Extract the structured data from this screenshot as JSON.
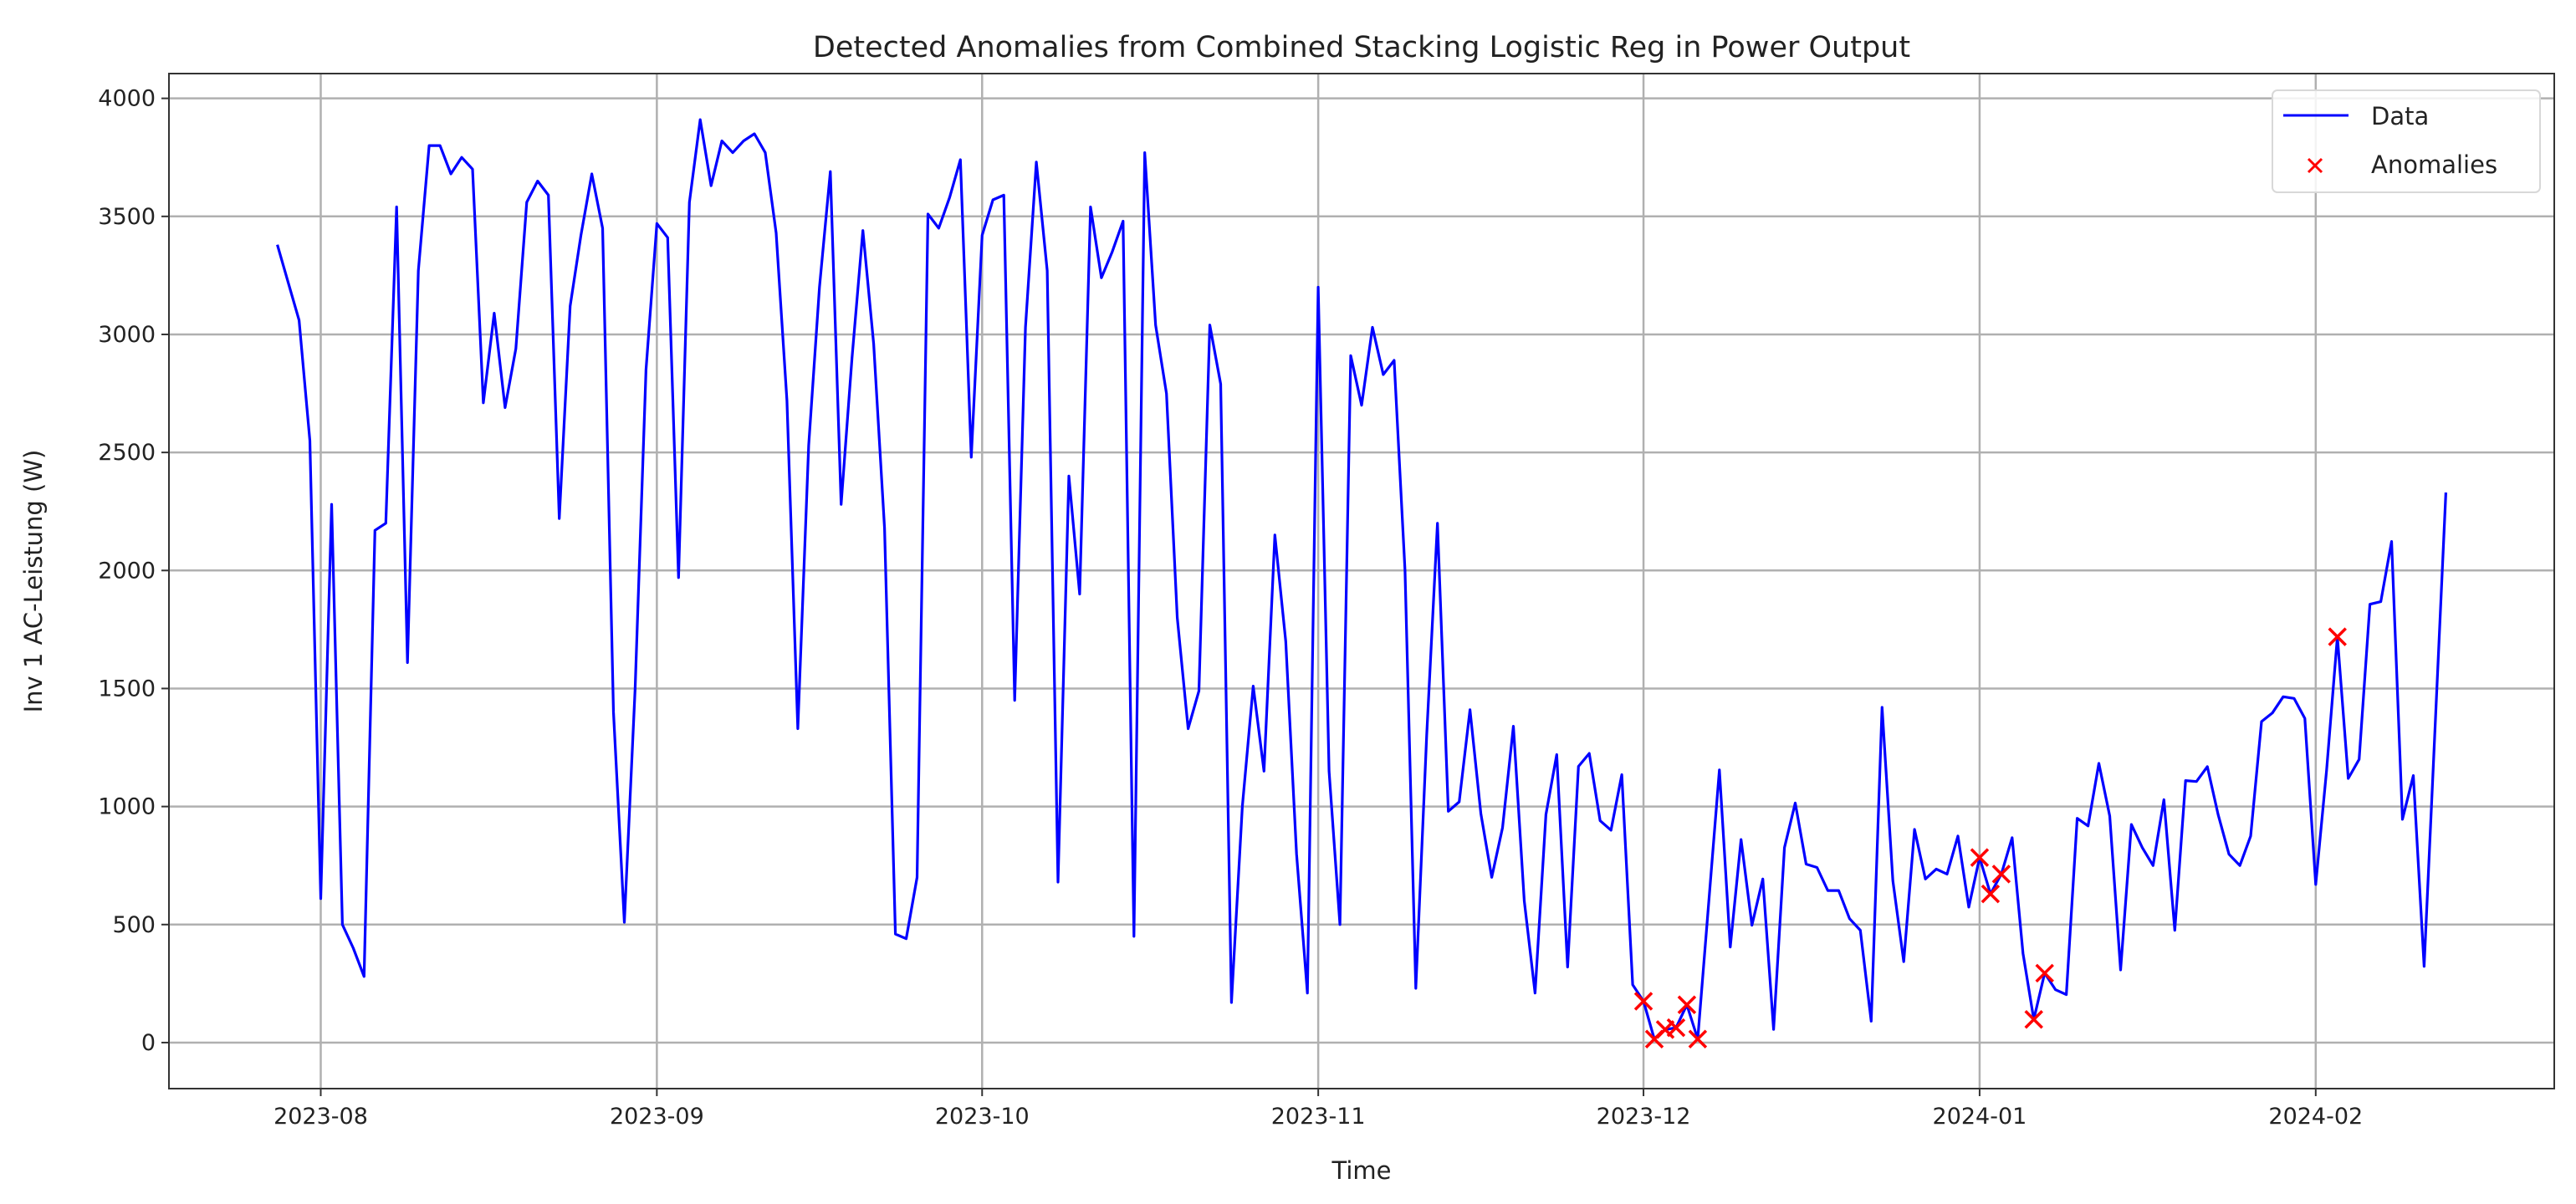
{
  "chart_data": {
    "type": "line",
    "title": "Detected Anomalies from Combined Stacking Logistic Reg in Power Output",
    "xlabel": "Time",
    "ylabel": "Inv 1 AC-Leistung (W)",
    "xlim": [
      "2023-07-18",
      "2024-02-23"
    ],
    "ylim": [
      -195,
      4105
    ],
    "grid": true,
    "legend_position": "top-right",
    "x_ticks": [
      "2023-08-01",
      "2023-09-01",
      "2023-10-01",
      "2023-11-01",
      "2023-12-01",
      "2024-01-01",
      "2024-02-01"
    ],
    "x_tick_labels": [
      "2023-08",
      "2023-09",
      "2023-10",
      "2023-11",
      "2023-12",
      "2024-01",
      "2024-02"
    ],
    "y_ticks": [
      0,
      500,
      1000,
      1500,
      2000,
      2500,
      3000,
      3500,
      4000
    ],
    "y_tick_labels": [
      "0",
      "500",
      "1000",
      "1500",
      "2000",
      "2500",
      "3000",
      "3500",
      "4000"
    ],
    "series": [
      {
        "name": "Data",
        "kind": "line",
        "color": "#0000ff",
        "x": [
          "2023-07-28",
          "2023-07-29",
          "2023-07-30",
          "2023-07-31",
          "2023-08-01",
          "2023-08-02",
          "2023-08-03",
          "2023-08-04",
          "2023-08-05",
          "2023-08-06",
          "2023-08-07",
          "2023-08-08",
          "2023-08-09",
          "2023-08-10",
          "2023-08-11",
          "2023-08-12",
          "2023-08-13",
          "2023-08-14",
          "2023-08-15",
          "2023-08-16",
          "2023-08-17",
          "2023-08-18",
          "2023-08-19",
          "2023-08-20",
          "2023-08-21",
          "2023-08-22",
          "2023-08-23",
          "2023-08-24",
          "2023-08-25",
          "2023-08-26",
          "2023-08-27",
          "2023-08-28",
          "2023-08-29",
          "2023-08-30",
          "2023-08-31",
          "2023-09-01",
          "2023-09-02",
          "2023-09-03",
          "2023-09-04",
          "2023-09-05",
          "2023-09-06",
          "2023-09-07",
          "2023-09-08",
          "2023-09-09",
          "2023-09-10",
          "2023-09-11",
          "2023-09-12",
          "2023-09-13",
          "2023-09-14",
          "2023-09-15",
          "2023-09-16",
          "2023-09-17",
          "2023-09-18",
          "2023-09-19",
          "2023-09-20",
          "2023-09-21",
          "2023-09-22",
          "2023-09-23",
          "2023-09-24",
          "2023-09-25",
          "2023-09-26",
          "2023-09-27",
          "2023-09-28",
          "2023-09-29",
          "2023-09-30",
          "2023-10-01",
          "2023-10-02",
          "2023-10-03",
          "2023-10-04",
          "2023-10-05",
          "2023-10-06",
          "2023-10-07",
          "2023-10-08",
          "2023-10-09",
          "2023-10-10",
          "2023-10-11",
          "2023-10-12",
          "2023-10-13",
          "2023-10-14",
          "2023-10-15",
          "2023-10-16",
          "2023-10-17",
          "2023-10-18",
          "2023-10-19",
          "2023-10-20",
          "2023-10-21",
          "2023-10-22",
          "2023-10-23",
          "2023-10-24",
          "2023-10-25",
          "2023-10-26",
          "2023-10-27",
          "2023-10-28",
          "2023-10-29",
          "2023-10-30",
          "2023-10-31",
          "2023-11-01",
          "2023-11-02",
          "2023-11-03",
          "2023-11-04",
          "2023-11-05",
          "2023-11-06",
          "2023-11-07",
          "2023-11-08",
          "2023-11-09",
          "2023-11-10",
          "2023-11-11",
          "2023-11-12",
          "2023-11-13",
          "2023-11-14",
          "2023-11-15",
          "2023-11-16",
          "2023-11-17",
          "2023-11-18",
          "2023-11-19",
          "2023-11-20",
          "2023-11-21",
          "2023-11-22",
          "2023-11-23",
          "2023-11-24",
          "2023-11-25",
          "2023-11-26",
          "2023-11-27",
          "2023-11-28",
          "2023-11-29",
          "2023-11-30",
          "2023-12-01",
          "2023-12-02",
          "2023-12-03",
          "2023-12-04",
          "2023-12-05",
          "2023-12-06",
          "2023-12-08",
          "2023-12-09",
          "2023-12-10",
          "2023-12-11",
          "2023-12-12",
          "2023-12-13",
          "2023-12-14",
          "2023-12-15",
          "2023-12-16",
          "2023-12-17",
          "2023-12-18",
          "2023-12-19",
          "2023-12-20",
          "2023-12-21",
          "2023-12-22",
          "2023-12-23",
          "2023-12-24",
          "2023-12-25",
          "2023-12-26",
          "2023-12-27",
          "2023-12-28",
          "2023-12-29",
          "2023-12-30",
          "2023-12-31",
          "2024-01-01",
          "2024-01-02",
          "2024-01-03",
          "2024-01-04",
          "2024-01-05",
          "2024-01-06",
          "2024-01-07",
          "2024-01-08",
          "2024-01-09",
          "2024-01-10",
          "2024-01-11",
          "2024-01-12",
          "2024-01-13",
          "2024-01-14",
          "2024-01-15",
          "2024-01-16",
          "2024-01-17",
          "2024-01-18",
          "2024-01-19",
          "2024-01-20",
          "2024-01-21",
          "2024-01-22",
          "2024-01-23",
          "2024-01-24",
          "2024-01-25",
          "2024-01-26",
          "2024-01-27",
          "2024-01-28",
          "2024-01-29",
          "2024-01-30",
          "2024-01-31",
          "2024-02-01",
          "2024-02-02",
          "2024-02-03",
          "2024-02-04",
          "2024-02-05",
          "2024-02-06",
          "2024-02-07",
          "2024-02-08",
          "2024-02-09",
          "2024-02-10",
          "2024-02-11",
          "2024-02-13"
        ],
        "y": [
          3380,
          3220,
          3060,
          2550,
          610,
          2280,
          500,
          400,
          280,
          2170,
          2200,
          3540,
          1610,
          3270,
          3800,
          3800,
          3680,
          3750,
          3700,
          2710,
          3090,
          2690,
          2940,
          3560,
          3650,
          3590,
          2220,
          3120,
          3420,
          3680,
          3450,
          1400,
          510,
          1500,
          2850,
          3470,
          3410,
          1970,
          3560,
          3910,
          3630,
          3820,
          3770,
          3820,
          3850,
          3770,
          3430,
          2720,
          1330,
          2530,
          3200,
          3690,
          2280,
          2900,
          3440,
          2960,
          2180,
          460,
          440,
          700,
          3510,
          3450,
          3580,
          3740,
          2480,
          3420,
          3570,
          3590,
          1450,
          3030,
          3730,
          3270,
          680,
          2400,
          1900,
          3540,
          3240,
          3350,
          3480,
          450,
          3770,
          3040,
          2750,
          1800,
          1330,
          1490,
          3040,
          2790,
          170,
          1000,
          1510,
          1150,
          2150,
          1700,
          800,
          210,
          3200,
          1150,
          500,
          2910,
          2700,
          3030,
          2830,
          2890,
          2000,
          230,
          1300,
          2200,
          980,
          1020,
          1410,
          970,
          700,
          910,
          1340,
          600,
          210,
          966,
          1220,
          320,
          1170,
          1225,
          940,
          900,
          1135,
          245,
          175,
          15,
          55,
          63,
          160,
          15,
          1155,
          405,
          860,
          497,
          693,
          56,
          826,
          1015,
          756,
          742,
          644,
          644,
          525,
          476,
          91,
          1420,
          686,
          343,
          903,
          693,
          735,
          714,
          875,
          574,
          784,
          630,
          714,
          868,
          378,
          98,
          294,
          224,
          203,
          950,
          918,
          1183,
          960,
          308,
          924,
          826,
          750,
          1029,
          476,
          1110,
          1106,
          1169,
          966,
          798,
          750,
          875,
          1360,
          1396,
          1465,
          1458,
          1373,
          670,
          1154,
          1719,
          1119,
          1200,
          1857,
          1868,
          2123,
          946,
          1131,
          323,
          2330
        ]
      },
      {
        "name": "Anomalies",
        "kind": "scatter",
        "marker": "x",
        "color": "#ff0000",
        "x": [
          "2023-12-01",
          "2023-12-02",
          "2023-12-03",
          "2023-12-04",
          "2023-12-05",
          "2023-12-06",
          "2024-01-01",
          "2024-01-02",
          "2024-01-03",
          "2024-01-06",
          "2024-01-07",
          "2024-02-03"
        ],
        "y": [
          175,
          15,
          55,
          63,
          160,
          15,
          784,
          630,
          714,
          98,
          294,
          1719
        ]
      }
    ]
  }
}
